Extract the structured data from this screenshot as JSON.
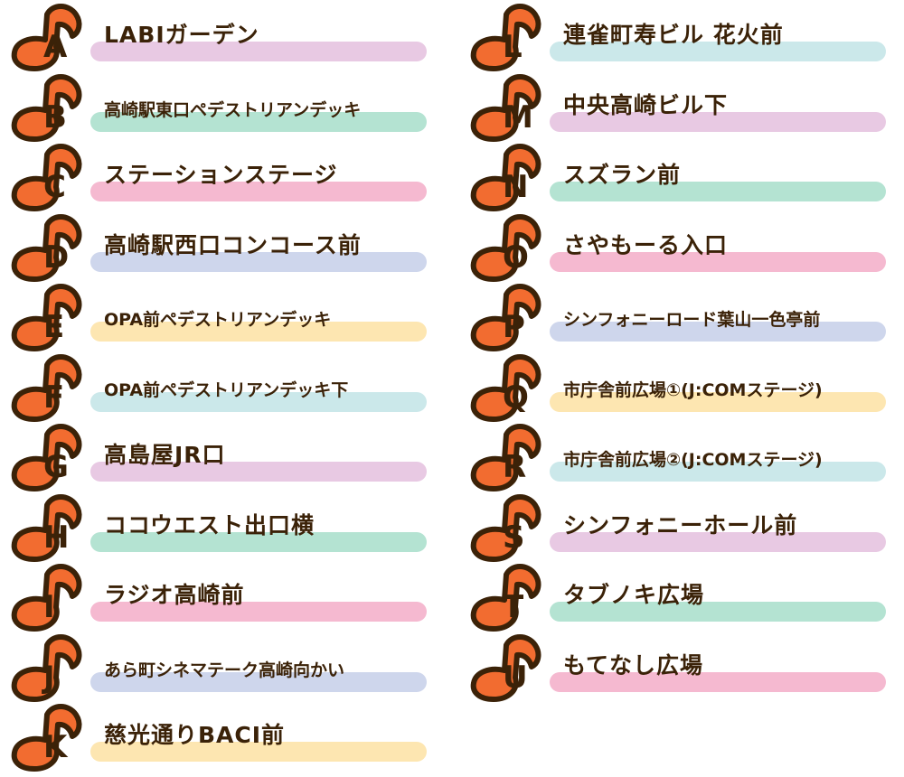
{
  "colors": {
    "marker_fill": "#f26c30",
    "marker_outline": "#3b2208",
    "text": "#3b2208",
    "bar_pink": "#f5b9d0",
    "bar_lavender": "#e8c9e3",
    "bar_mint": "#b4e3d2",
    "bar_periwinkle": "#ced6ec",
    "bar_yellow": "#fde6b1",
    "bar_lightblue": "#cbe8ea"
  },
  "marker_icon": "music-note-icon",
  "left": [
    {
      "letter": "A",
      "label": "LABIガーデン",
      "bar": "#e8c9e3",
      "small": false
    },
    {
      "letter": "B",
      "label": "高崎駅東口ペデストリアンデッキ",
      "bar": "#b4e3d2",
      "small": true
    },
    {
      "letter": "C",
      "label": "ステーションステージ",
      "bar": "#f5b9d0",
      "small": false
    },
    {
      "letter": "D",
      "label": "高崎駅西口コンコース前",
      "bar": "#ced6ec",
      "small": false
    },
    {
      "letter": "E",
      "label": "OPA前ペデストリアンデッキ",
      "bar": "#fde6b1",
      "small": true
    },
    {
      "letter": "F",
      "label": "OPA前ペデストリアンデッキ下",
      "bar": "#cbe8ea",
      "small": true
    },
    {
      "letter": "G",
      "label": "高島屋JR口",
      "bar": "#e8c9e3",
      "small": false
    },
    {
      "letter": "H",
      "label": "ココウエスト出口横",
      "bar": "#b4e3d2",
      "small": false
    },
    {
      "letter": "I",
      "label": "ラジオ高崎前",
      "bar": "#f5b9d0",
      "small": false
    },
    {
      "letter": "J",
      "label": "あら町シネマテーク高崎向かい",
      "bar": "#ced6ec",
      "small": true
    },
    {
      "letter": "K",
      "label": "慈光通りBACI前",
      "bar": "#fde6b1",
      "small": false
    }
  ],
  "right": [
    {
      "letter": "L",
      "label": "連雀町寿ビル 花火前",
      "bar": "#cbe8ea",
      "small": false
    },
    {
      "letter": "M",
      "label": "中央高崎ビル下",
      "bar": "#e8c9e3",
      "small": false
    },
    {
      "letter": "N",
      "label": "スズラン前",
      "bar": "#b4e3d2",
      "small": false
    },
    {
      "letter": "O",
      "label": "さやもーる入口",
      "bar": "#f5b9d0",
      "small": false
    },
    {
      "letter": "P",
      "label": "シンフォニーロード葉山一色亭前",
      "bar": "#ced6ec",
      "small": true
    },
    {
      "letter": "Q",
      "label": "市庁舎前広場①(J:COMステージ)",
      "bar": "#fde6b1",
      "small": true
    },
    {
      "letter": "R",
      "label": "市庁舎前広場②(J:COMステージ)",
      "bar": "#cbe8ea",
      "small": true
    },
    {
      "letter": "S",
      "label": "シンフォニーホール前",
      "bar": "#e8c9e3",
      "small": false
    },
    {
      "letter": "T",
      "label": "タブノキ広場",
      "bar": "#b4e3d2",
      "small": false
    },
    {
      "letter": "U",
      "label": "もてなし広場",
      "bar": "#f5b9d0",
      "small": false
    }
  ]
}
